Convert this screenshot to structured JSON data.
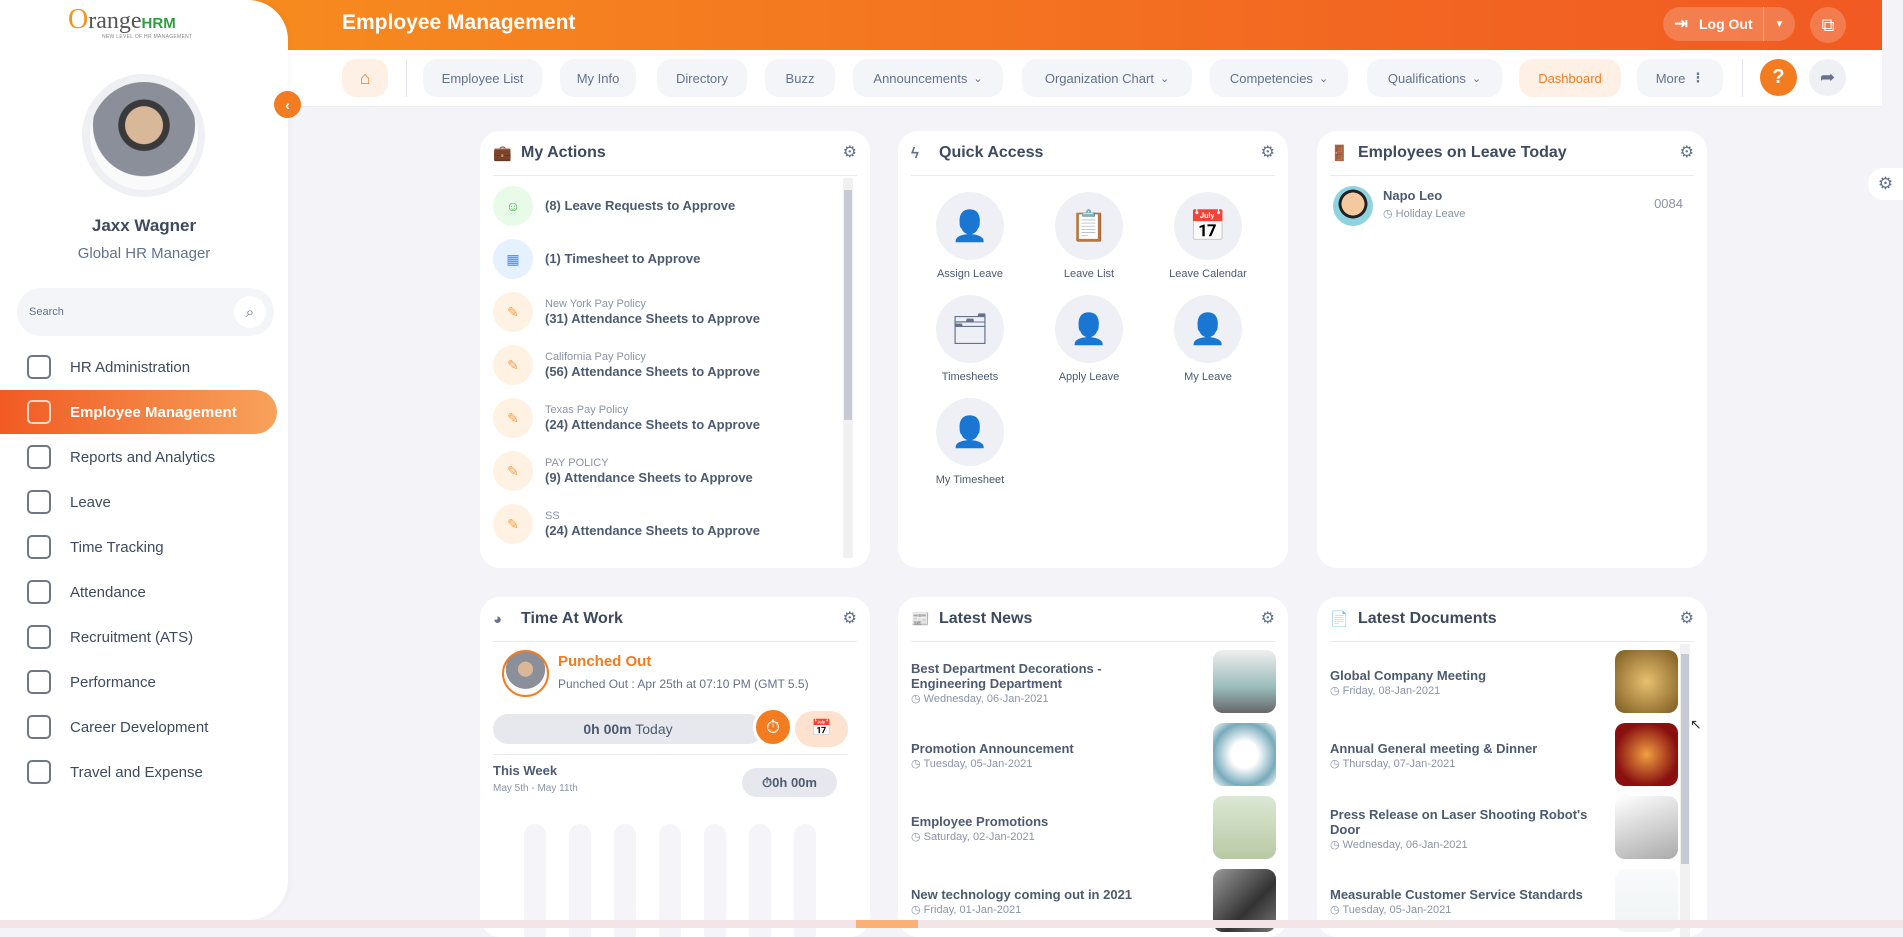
{
  "header": {
    "title": "Employee Management",
    "logout_label": "Log Out"
  },
  "logo": {
    "text": "range",
    "hrm": "HRM",
    "tagline": "NEW LEVEL OF HR MANAGEMENT"
  },
  "user": {
    "name": "Jaxx Wagner",
    "role": "Global HR Manager"
  },
  "search": {
    "placeholder": "Search"
  },
  "menu": [
    {
      "label": "HR Administration"
    },
    {
      "label": "Employee Management",
      "active": true
    },
    {
      "label": "Reports and Analytics"
    },
    {
      "label": "Leave"
    },
    {
      "label": "Time Tracking"
    },
    {
      "label": "Attendance"
    },
    {
      "label": "Recruitment (ATS)"
    },
    {
      "label": "Performance"
    },
    {
      "label": "Career Development"
    },
    {
      "label": "Travel and Expense"
    }
  ],
  "nav": [
    {
      "label": "Employee List"
    },
    {
      "label": "My Info"
    },
    {
      "label": "Directory"
    },
    {
      "label": "Buzz"
    },
    {
      "label": "Announcements",
      "dropdown": true
    },
    {
      "label": "Organization Chart",
      "dropdown": true
    },
    {
      "label": "Competencies",
      "dropdown": true
    },
    {
      "label": "Qualifications",
      "dropdown": true
    },
    {
      "label": "Dashboard",
      "active": true
    },
    {
      "label": "More"
    }
  ],
  "my_actions": {
    "title": "My Actions",
    "items": [
      {
        "main": "(8) Leave Requests to Approve",
        "sub": "",
        "color": "#e8fbe8",
        "icon": "leave"
      },
      {
        "main": "(1) Timesheet to Approve",
        "sub": "",
        "color": "#e6f1ff",
        "icon": "timesheet"
      },
      {
        "sub": "New York Pay Policy",
        "main": "(31) Attendance Sheets to Approve",
        "color": "#fff2e3",
        "icon": "attendance"
      },
      {
        "sub": "California Pay Policy",
        "main": "(56) Attendance Sheets to Approve",
        "color": "#fff2e3",
        "icon": "attendance"
      },
      {
        "sub": "Texas Pay Policy",
        "main": "(24) Attendance Sheets to Approve",
        "color": "#fff2e3",
        "icon": "attendance"
      },
      {
        "sub": "PAY POLICY",
        "main": "(9) Attendance Sheets to Approve",
        "color": "#fff2e3",
        "icon": "attendance"
      },
      {
        "sub": "SS",
        "main": "(24) Attendance Sheets to Approve",
        "color": "#fff2e3",
        "icon": "attendance"
      }
    ]
  },
  "quick_access": {
    "title": "Quick Access",
    "items": [
      {
        "label": "Assign Leave"
      },
      {
        "label": "Leave List"
      },
      {
        "label": "Leave Calendar"
      },
      {
        "label": "Timesheets"
      },
      {
        "label": "Apply Leave"
      },
      {
        "label": "My Leave"
      },
      {
        "label": "My Timesheet"
      }
    ]
  },
  "on_leave": {
    "title": "Employees on Leave Today",
    "items": [
      {
        "name": "Napo Leo",
        "type": "Holiday Leave",
        "id": "0084"
      }
    ]
  },
  "time_at_work": {
    "title": "Time At Work",
    "status": "Punched Out",
    "detail": "Punched Out : Apr 25th at 07:10 PM (GMT 5.5)",
    "today_value": "0h 00m",
    "today_label": "Today",
    "week_label": "This Week",
    "week_range": "May 5th - May 11th",
    "week_total": "0h 00m"
  },
  "latest_news": {
    "title": "Latest News",
    "items": [
      {
        "title": "Best Department Decorations - Engineering Department",
        "date": "Wednesday, 06-Jan-2021"
      },
      {
        "title": "Promotion Announcement",
        "date": "Tuesday, 05-Jan-2021"
      },
      {
        "title": "Employee Promotions",
        "date": "Saturday, 02-Jan-2021"
      },
      {
        "title": "New technology coming out in 2021",
        "date": "Friday, 01-Jan-2021"
      }
    ]
  },
  "latest_documents": {
    "title": "Latest Documents",
    "items": [
      {
        "title": "Global Company Meeting",
        "date": "Friday, 08-Jan-2021"
      },
      {
        "title": "Annual General meeting & Dinner",
        "date": "Thursday, 07-Jan-2021"
      },
      {
        "title": "Press Release on Laser Shooting Robot's Door",
        "date": "Wednesday, 06-Jan-2021"
      },
      {
        "title": "Measurable Customer Service Standards",
        "date": "Tuesday, 05-Jan-2021"
      }
    ]
  },
  "colors": {
    "accent": "#f47c20",
    "header_start": "#f7931e",
    "header_end": "#f15a22"
  }
}
